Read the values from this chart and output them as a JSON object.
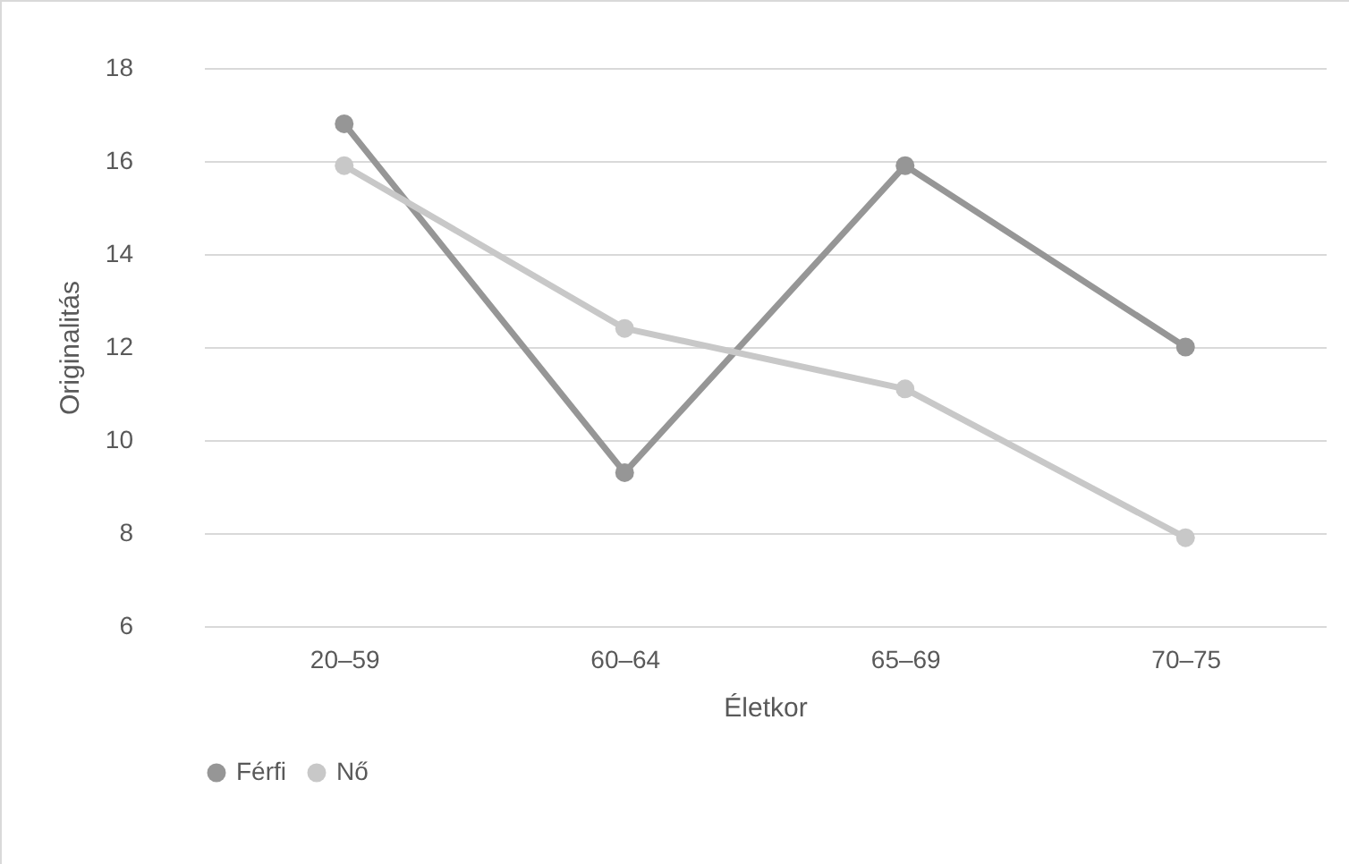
{
  "chart_data": {
    "type": "line",
    "xlabel": "Életkor",
    "ylabel": "Originalitás",
    "categories": [
      "20–59",
      "60–64",
      "65–69",
      "70–75"
    ],
    "series": [
      {
        "name": "Férfi",
        "color": "#969696",
        "values": [
          16.8,
          9.3,
          15.9,
          12.0
        ]
      },
      {
        "name": "Nő",
        "color": "#c8c8c8",
        "values": [
          15.9,
          12.4,
          11.1,
          7.9
        ]
      }
    ],
    "ylim": [
      6,
      18
    ],
    "yticks": [
      6,
      8,
      10,
      12,
      14,
      16,
      18
    ],
    "grid": "y",
    "legend": "bottom",
    "marker": "circle",
    "line_style": "solid"
  }
}
